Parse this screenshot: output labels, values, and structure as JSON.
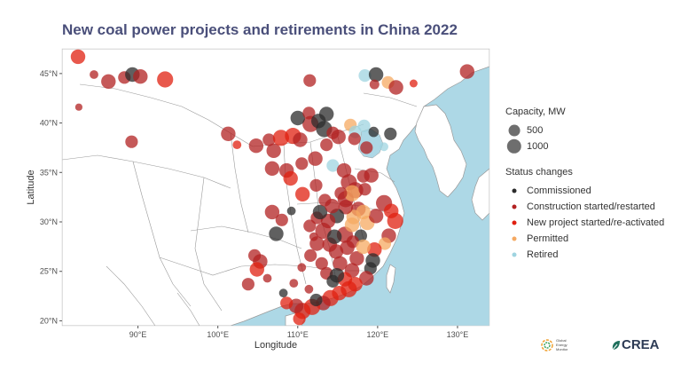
{
  "title": "New coal power projects and retirements in China 2022",
  "axes": {
    "xlabel": "Longitude",
    "ylabel": "Latitude",
    "x_ticks": [
      {
        "value": 90,
        "label": "90°E"
      },
      {
        "value": 100,
        "label": "100°E"
      },
      {
        "value": 110,
        "label": "110°E"
      },
      {
        "value": 120,
        "label": "120°E"
      },
      {
        "value": 130,
        "label": "130°E"
      }
    ],
    "y_ticks": [
      {
        "value": 20,
        "label": "20°N"
      },
      {
        "value": 25,
        "label": "25°N"
      },
      {
        "value": 30,
        "label": "30°N"
      },
      {
        "value": 35,
        "label": "35°N"
      },
      {
        "value": 40,
        "label": "40°N"
      },
      {
        "value": 45,
        "label": "45°N"
      }
    ],
    "xlim": [
      80.5,
      134
    ],
    "ylim": [
      19.5,
      47.5
    ]
  },
  "colors": {
    "land": "#ffffff",
    "sea": "#add8e6",
    "border": "#9a9a9a",
    "Commissioned": "#2b2b2b",
    "Construction started/restarted": "#b22222",
    "New project started/re-activated": "#e02010",
    "Permitted": "#f5a962",
    "Retired": "#9fd4e0"
  },
  "legend": {
    "capacity_title": "Capacity, MW",
    "capacity_items": [
      {
        "label": "500",
        "mw": 500
      },
      {
        "label": "1000",
        "mw": 1000
      }
    ],
    "status_title": "Status changes",
    "status_items": [
      {
        "label": "Commissioned"
      },
      {
        "label": "Construction started/restarted"
      },
      {
        "label": "New project started/re-activated"
      },
      {
        "label": "Permitted"
      },
      {
        "label": "Retired"
      }
    ]
  },
  "logos": {
    "gem_text": "Global Energy Monitor",
    "crea_text": "CREA"
  },
  "points": [
    {
      "lon": 82.5,
      "lat": 46.7,
      "mw": 1000,
      "status": "New project started/re-activated"
    },
    {
      "lon": 84.5,
      "lat": 44.9,
      "mw": 200,
      "status": "Construction started/restarted"
    },
    {
      "lon": 86.3,
      "lat": 44.2,
      "mw": 1000,
      "status": "Construction started/restarted"
    },
    {
      "lon": 88.3,
      "lat": 44.6,
      "mw": 660,
      "status": "Construction started/restarted"
    },
    {
      "lon": 89.3,
      "lat": 44.9,
      "mw": 1000,
      "status": "Commissioned"
    },
    {
      "lon": 90.3,
      "lat": 44.7,
      "mw": 1000,
      "status": "Construction started/restarted"
    },
    {
      "lon": 93.4,
      "lat": 44.4,
      "mw": 1320,
      "status": "New project started/re-activated"
    },
    {
      "lon": 82.6,
      "lat": 41.6,
      "mw": 100,
      "status": "Construction started/restarted"
    },
    {
      "lon": 89.2,
      "lat": 38.1,
      "mw": 660,
      "status": "Construction started/restarted"
    },
    {
      "lon": 111.5,
      "lat": 44.3,
      "mw": 660,
      "status": "Construction started/restarted"
    },
    {
      "lon": 118.4,
      "lat": 44.8,
      "mw": 660,
      "status": "Retired"
    },
    {
      "lon": 119.8,
      "lat": 44.9,
      "mw": 1000,
      "status": "Commissioned"
    },
    {
      "lon": 121.3,
      "lat": 44.1,
      "mw": 660,
      "status": "Permitted"
    },
    {
      "lon": 122.3,
      "lat": 43.6,
      "mw": 1000,
      "status": "Construction started/restarted"
    },
    {
      "lon": 119.6,
      "lat": 43.9,
      "mw": 300,
      "status": "Construction started/restarted"
    },
    {
      "lon": 124.5,
      "lat": 44.0,
      "mw": 150,
      "status": "New project started/re-activated"
    },
    {
      "lon": 131.2,
      "lat": 45.2,
      "mw": 1000,
      "status": "Construction started/restarted"
    },
    {
      "lon": 101.3,
      "lat": 38.9,
      "mw": 1000,
      "status": "Construction started/restarted"
    },
    {
      "lon": 104.8,
      "lat": 37.7,
      "mw": 1000,
      "status": "Construction started/restarted"
    },
    {
      "lon": 106.4,
      "lat": 38.3,
      "mw": 660,
      "status": "Construction started/restarted"
    },
    {
      "lon": 107.0,
      "lat": 37.2,
      "mw": 1000,
      "status": "Construction started/restarted"
    },
    {
      "lon": 107.9,
      "lat": 38.5,
      "mw": 1320,
      "status": "New project started/re-activated"
    },
    {
      "lon": 109.4,
      "lat": 38.7,
      "mw": 1320,
      "status": "New project started/re-activated"
    },
    {
      "lon": 110.3,
      "lat": 38.3,
      "mw": 1000,
      "status": "Construction started/restarted"
    },
    {
      "lon": 111.6,
      "lat": 39.9,
      "mw": 1320,
      "status": "Construction started/restarted"
    },
    {
      "lon": 110.0,
      "lat": 40.5,
      "mw": 1000,
      "status": "Commissioned"
    },
    {
      "lon": 111.4,
      "lat": 41.0,
      "mw": 660,
      "status": "Construction started/restarted"
    },
    {
      "lon": 112.6,
      "lat": 40.2,
      "mw": 1000,
      "status": "Commissioned"
    },
    {
      "lon": 113.3,
      "lat": 39.4,
      "mw": 1320,
      "status": "Commissioned"
    },
    {
      "lon": 113.6,
      "lat": 40.9,
      "mw": 1000,
      "status": "Commissioned"
    },
    {
      "lon": 114.4,
      "lat": 39.0,
      "mw": 660,
      "status": "Construction started/restarted"
    },
    {
      "lon": 115.1,
      "lat": 38.6,
      "mw": 1000,
      "status": "Construction started/restarted"
    },
    {
      "lon": 116.6,
      "lat": 39.8,
      "mw": 660,
      "status": "Permitted"
    },
    {
      "lon": 117.2,
      "lat": 39.1,
      "mw": 660,
      "status": "Retired"
    },
    {
      "lon": 118.3,
      "lat": 39.7,
      "mw": 660,
      "status": "Retired"
    },
    {
      "lon": 117.1,
      "lat": 38.4,
      "mw": 660,
      "status": "Construction started/restarted"
    },
    {
      "lon": 118.6,
      "lat": 37.5,
      "mw": 660,
      "status": "Construction started/restarted"
    },
    {
      "lon": 119.5,
      "lat": 39.1,
      "mw": 350,
      "status": "Commissioned"
    },
    {
      "lon": 121.6,
      "lat": 38.9,
      "mw": 660,
      "status": "Commissioned"
    },
    {
      "lon": 120.8,
      "lat": 37.6,
      "mw": 200,
      "status": "Retired"
    },
    {
      "lon": 113.6,
      "lat": 37.8,
      "mw": 660,
      "status": "Construction started/restarted"
    },
    {
      "lon": 112.2,
      "lat": 36.4,
      "mw": 1000,
      "status": "Construction started/restarted"
    },
    {
      "lon": 110.5,
      "lat": 35.9,
      "mw": 660,
      "status": "Construction started/restarted"
    },
    {
      "lon": 108.6,
      "lat": 35.2,
      "mw": 1000,
      "status": "Construction started/restarted"
    },
    {
      "lon": 106.8,
      "lat": 35.4,
      "mw": 1000,
      "status": "Construction started/restarted"
    },
    {
      "lon": 109.1,
      "lat": 34.4,
      "mw": 1000,
      "status": "New project started/re-activated"
    },
    {
      "lon": 110.6,
      "lat": 32.8,
      "mw": 1000,
      "status": "New project started/re-activated"
    },
    {
      "lon": 112.3,
      "lat": 33.7,
      "mw": 660,
      "status": "Construction started/restarted"
    },
    {
      "lon": 114.4,
      "lat": 35.7,
      "mw": 660,
      "status": "Retired"
    },
    {
      "lon": 115.8,
      "lat": 35.2,
      "mw": 1000,
      "status": "Construction started/restarted"
    },
    {
      "lon": 116.4,
      "lat": 34.0,
      "mw": 1320,
      "status": "Construction started/restarted"
    },
    {
      "lon": 117.2,
      "lat": 33.2,
      "mw": 1320,
      "status": "Construction started/restarted"
    },
    {
      "lon": 116.0,
      "lat": 32.3,
      "mw": 1320,
      "status": "Construction started/restarted"
    },
    {
      "lon": 117.6,
      "lat": 31.3,
      "mw": 1000,
      "status": "Construction started/restarted"
    },
    {
      "lon": 116.8,
      "lat": 32.9,
      "mw": 1320,
      "status": "Permitted"
    },
    {
      "lon": 118.2,
      "lat": 34.6,
      "mw": 660,
      "status": "Construction started/restarted"
    },
    {
      "lon": 119.2,
      "lat": 34.7,
      "mw": 1000,
      "status": "Construction started/restarted"
    },
    {
      "lon": 118.4,
      "lat": 33.3,
      "mw": 660,
      "status": "Construction started/restarted"
    },
    {
      "lon": 120.8,
      "lat": 31.9,
      "mw": 1320,
      "status": "Construction started/restarted"
    },
    {
      "lon": 121.7,
      "lat": 31.1,
      "mw": 1000,
      "status": "New project started/re-activated"
    },
    {
      "lon": 122.2,
      "lat": 30.1,
      "mw": 1320,
      "status": "New project started/re-activated"
    },
    {
      "lon": 121.4,
      "lat": 28.6,
      "mw": 1000,
      "status": "Construction started/restarted"
    },
    {
      "lon": 120.9,
      "lat": 27.8,
      "mw": 660,
      "status": "Permitted"
    },
    {
      "lon": 119.6,
      "lat": 27.2,
      "mw": 1000,
      "status": "New project started/re-activated"
    },
    {
      "lon": 119.4,
      "lat": 26.1,
      "mw": 1000,
      "status": "Commissioned"
    },
    {
      "lon": 119.1,
      "lat": 25.3,
      "mw": 660,
      "status": "Commissioned"
    },
    {
      "lon": 118.6,
      "lat": 24.3,
      "mw": 1000,
      "status": "Construction started/restarted"
    },
    {
      "lon": 117.2,
      "lat": 23.7,
      "mw": 1000,
      "status": "New project started/re-activated"
    },
    {
      "lon": 116.4,
      "lat": 23.2,
      "mw": 1320,
      "status": "New project started/re-activated"
    },
    {
      "lon": 115.2,
      "lat": 22.8,
      "mw": 1000,
      "status": "New project started/re-activated"
    },
    {
      "lon": 114.1,
      "lat": 22.3,
      "mw": 1320,
      "status": "New project started/re-activated"
    },
    {
      "lon": 113.2,
      "lat": 21.8,
      "mw": 1000,
      "status": "Construction started/restarted"
    },
    {
      "lon": 111.8,
      "lat": 21.4,
      "mw": 1320,
      "status": "New project started/re-activated"
    },
    {
      "lon": 110.6,
      "lat": 21.0,
      "mw": 1320,
      "status": "New project started/re-activated"
    },
    {
      "lon": 109.8,
      "lat": 21.5,
      "mw": 1000,
      "status": "Construction started/restarted"
    },
    {
      "lon": 108.6,
      "lat": 21.8,
      "mw": 660,
      "status": "New project started/re-activated"
    },
    {
      "lon": 110.2,
      "lat": 20.2,
      "mw": 660,
      "status": "New project started/re-activated"
    },
    {
      "lon": 111.4,
      "lat": 23.2,
      "mw": 200,
      "status": "Construction started/restarted"
    },
    {
      "lon": 112.3,
      "lat": 22.1,
      "mw": 660,
      "status": "Commissioned"
    },
    {
      "lon": 113.6,
      "lat": 24.8,
      "mw": 660,
      "status": "Construction started/restarted"
    },
    {
      "lon": 114.4,
      "lat": 24.0,
      "mw": 660,
      "status": "Commissioned"
    },
    {
      "lon": 115.3,
      "lat": 25.8,
      "mw": 1000,
      "status": "Construction started/restarted"
    },
    {
      "lon": 114.8,
      "lat": 27.0,
      "mw": 1000,
      "status": "Construction started/restarted"
    },
    {
      "lon": 115.9,
      "lat": 28.7,
      "mw": 1320,
      "status": "Construction started/restarted"
    },
    {
      "lon": 116.8,
      "lat": 29.7,
      "mw": 1000,
      "status": "Permitted"
    },
    {
      "lon": 117.9,
      "lat": 28.6,
      "mw": 660,
      "status": "Commissioned"
    },
    {
      "lon": 118.7,
      "lat": 29.9,
      "mw": 1000,
      "status": "Permitted"
    },
    {
      "lon": 119.8,
      "lat": 30.6,
      "mw": 1000,
      "status": "Construction started/restarted"
    },
    {
      "lon": 118.2,
      "lat": 31.0,
      "mw": 1000,
      "status": "Permitted"
    },
    {
      "lon": 117.0,
      "lat": 30.5,
      "mw": 1000,
      "status": "Permitted"
    },
    {
      "lon": 116.0,
      "lat": 31.5,
      "mw": 1000,
      "status": "Construction started/restarted"
    },
    {
      "lon": 114.9,
      "lat": 30.6,
      "mw": 1000,
      "status": "Commissioned"
    },
    {
      "lon": 113.8,
      "lat": 30.1,
      "mw": 1000,
      "status": "Construction started/restarted"
    },
    {
      "lon": 112.4,
      "lat": 30.4,
      "mw": 660,
      "status": "Construction started/restarted"
    },
    {
      "lon": 113.2,
      "lat": 29.1,
      "mw": 1320,
      "status": "Construction started/restarted"
    },
    {
      "lon": 112.4,
      "lat": 27.8,
      "mw": 1000,
      "status": "Construction started/restarted"
    },
    {
      "lon": 111.6,
      "lat": 26.6,
      "mw": 660,
      "status": "Construction started/restarted"
    },
    {
      "lon": 113.0,
      "lat": 25.8,
      "mw": 660,
      "status": "Construction started/restarted"
    },
    {
      "lon": 114.0,
      "lat": 27.7,
      "mw": 1000,
      "status": "Construction started/restarted"
    },
    {
      "lon": 114.6,
      "lat": 28.5,
      "mw": 1000,
      "status": "Commissioned"
    },
    {
      "lon": 116.2,
      "lat": 27.4,
      "mw": 1000,
      "status": "Construction started/restarted"
    },
    {
      "lon": 117.4,
      "lat": 26.3,
      "mw": 1000,
      "status": "Construction started/restarted"
    },
    {
      "lon": 116.8,
      "lat": 25.1,
      "mw": 1000,
      "status": "Construction started/restarted"
    },
    {
      "lon": 115.9,
      "lat": 24.2,
      "mw": 1000,
      "status": "New project started/re-activated"
    },
    {
      "lon": 114.9,
      "lat": 24.6,
      "mw": 1000,
      "status": "Commissioned"
    },
    {
      "lon": 116.9,
      "lat": 28.0,
      "mw": 660,
      "status": "Construction started/restarted"
    },
    {
      "lon": 118.2,
      "lat": 27.5,
      "mw": 1000,
      "status": "Permitted"
    },
    {
      "lon": 111.5,
      "lat": 29.6,
      "mw": 660,
      "status": "Construction started/restarted"
    },
    {
      "lon": 112.8,
      "lat": 31.0,
      "mw": 1000,
      "status": "Commissioned"
    },
    {
      "lon": 114.3,
      "lat": 31.6,
      "mw": 1000,
      "status": "Construction started/restarted"
    },
    {
      "lon": 115.4,
      "lat": 32.9,
      "mw": 660,
      "status": "Construction started/restarted"
    },
    {
      "lon": 113.4,
      "lat": 32.2,
      "mw": 660,
      "status": "Construction started/restarted"
    },
    {
      "lon": 108.0,
      "lat": 30.2,
      "mw": 660,
      "status": "Construction started/restarted"
    },
    {
      "lon": 106.8,
      "lat": 31.0,
      "mw": 1000,
      "status": "Construction started/restarted"
    },
    {
      "lon": 107.3,
      "lat": 28.8,
      "mw": 1000,
      "status": "Commissioned"
    },
    {
      "lon": 104.6,
      "lat": 26.6,
      "mw": 660,
      "status": "Construction started/restarted"
    },
    {
      "lon": 105.3,
      "lat": 26.0,
      "mw": 1000,
      "status": "Construction started/restarted"
    },
    {
      "lon": 104.9,
      "lat": 25.2,
      "mw": 1000,
      "status": "New project started/re-activated"
    },
    {
      "lon": 103.8,
      "lat": 23.7,
      "mw": 660,
      "status": "Construction started/restarted"
    },
    {
      "lon": 106.2,
      "lat": 24.3,
      "mw": 200,
      "status": "Construction started/restarted"
    },
    {
      "lon": 108.2,
      "lat": 22.8,
      "mw": 200,
      "status": "Commissioned"
    },
    {
      "lon": 109.5,
      "lat": 23.8,
      "mw": 200,
      "status": "Construction started/restarted"
    },
    {
      "lon": 110.5,
      "lat": 25.4,
      "mw": 200,
      "status": "Construction started/restarted"
    },
    {
      "lon": 109.2,
      "lat": 31.1,
      "mw": 200,
      "status": "Commissioned"
    },
    {
      "lon": 112.0,
      "lat": 28.5,
      "mw": 200,
      "status": "Construction started/restarted"
    },
    {
      "lon": 102.4,
      "lat": 37.8,
      "mw": 200,
      "status": "New project started/re-activated"
    }
  ]
}
